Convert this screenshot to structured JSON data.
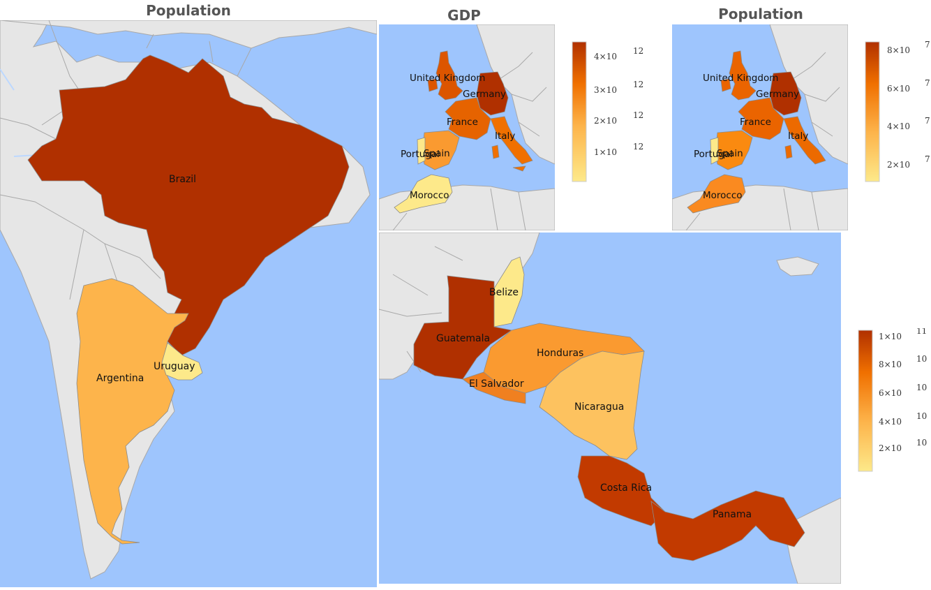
{
  "panels": {
    "south_america": {
      "title": "Population",
      "countries": [
        {
          "name": "Brazil",
          "color": "#b03000"
        },
        {
          "name": "Argentina",
          "color": "#fdb44b"
        },
        {
          "name": "Uruguay",
          "color": "#fde98a"
        }
      ]
    },
    "europe_gdp": {
      "title": "GDP",
      "countries": [
        {
          "name": "United Kingdom",
          "color": "#dc5500"
        },
        {
          "name": "Germany",
          "color": "#b03000"
        },
        {
          "name": "France",
          "color": "#e66300"
        },
        {
          "name": "Italy",
          "color": "#f07000"
        },
        {
          "name": "Spain",
          "color": "#fa9a30"
        },
        {
          "name": "Portugal",
          "color": "#fde98a"
        },
        {
          "name": "Morocco",
          "color": "#fde98a"
        }
      ],
      "legend": {
        "ticks": [
          "1×10",
          "2×10",
          "3×10",
          "4×10"
        ],
        "exponent": "12"
      }
    },
    "europe_population": {
      "title": "Population",
      "countries": [
        {
          "name": "United Kingdom",
          "color": "#ea6400"
        },
        {
          "name": "Germany",
          "color": "#b03000"
        },
        {
          "name": "France",
          "color": "#ea6400"
        },
        {
          "name": "Italy",
          "color": "#ec6a00"
        },
        {
          "name": "Spain",
          "color": "#fa8a10"
        },
        {
          "name": "Portugal",
          "color": "#fde98a"
        },
        {
          "name": "Morocco",
          "color": "#fa8a20"
        }
      ],
      "legend": {
        "ticks": [
          "2×10",
          "4×10",
          "6×10",
          "8×10"
        ],
        "exponent": "7"
      }
    },
    "central_america": {
      "countries": [
        {
          "name": "Belize",
          "color": "#fde98a"
        },
        {
          "name": "Guatemala",
          "color": "#b03000"
        },
        {
          "name": "Honduras",
          "color": "#fa9a30"
        },
        {
          "name": "El Salvador",
          "color": "#f08020"
        },
        {
          "name": "Nicaragua",
          "color": "#fdc25f"
        },
        {
          "name": "Costa Rica",
          "color": "#c23a00"
        },
        {
          "name": "Panama",
          "color": "#c23a00"
        }
      ],
      "legend": {
        "ticks": [
          "2×10",
          "4×10",
          "6×10",
          "8×10",
          "1×10"
        ],
        "exponent": "10",
        "top_exponent": "11"
      }
    }
  }
}
